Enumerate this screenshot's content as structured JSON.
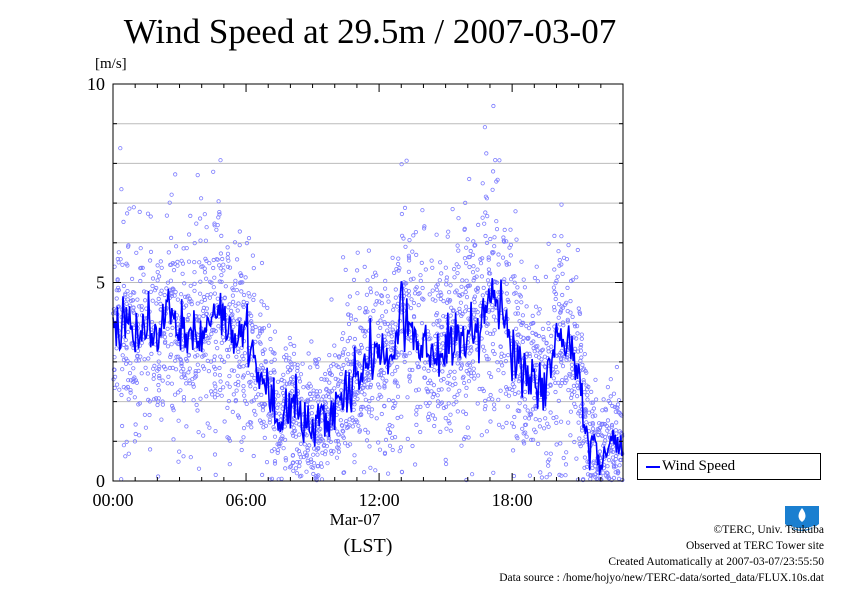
{
  "chart_data": {
    "type": "scatter",
    "title": "Wind Speed at 29.5m / 2007-03-07",
    "ylabel": "[m/s]",
    "xlabel": "(LST)",
    "xdate_label": "Mar-07",
    "ylim": [
      0,
      10
    ],
    "xlim_hours": [
      0,
      23
    ],
    "yticks": [
      0,
      5,
      10
    ],
    "ytick_labels": [
      "0",
      "5",
      "10"
    ],
    "xticks_hours": [
      0,
      6,
      12,
      18
    ],
    "xtick_labels": [
      "00:00",
      "06:00",
      "12:00",
      "18:00"
    ],
    "grid": true,
    "legend_position": "right-bottom",
    "series": [
      {
        "name": "Wind Speed",
        "style": "line",
        "color": "#0000ff",
        "x_hours": [
          0,
          0.5,
          1,
          1.5,
          2,
          2.5,
          3,
          3.5,
          4,
          4.5,
          5,
          5.5,
          6,
          6.5,
          7,
          7.5,
          8,
          8.5,
          9,
          9.5,
          10,
          10.5,
          11,
          11.5,
          12,
          12.5,
          13,
          13.5,
          14,
          14.5,
          15,
          15.5,
          16,
          16.5,
          17,
          17.5,
          18,
          18.5,
          19,
          19.5,
          20,
          20.5,
          21,
          21.5,
          22,
          22.5,
          23
        ],
        "values": [
          3.6,
          3.9,
          3.7,
          4.1,
          3.6,
          4.5,
          3.6,
          3.7,
          3.7,
          4.0,
          4.0,
          3.5,
          3.6,
          2.8,
          2.5,
          1.4,
          2.0,
          1.6,
          1.4,
          1.5,
          1.7,
          2.3,
          2.7,
          3.0,
          3.2,
          2.7,
          4.4,
          3.7,
          3.4,
          3.0,
          3.6,
          3.6,
          3.9,
          3.8,
          4.4,
          4.5,
          3.4,
          2.9,
          2.6,
          2.5,
          3.6,
          3.6,
          2.6,
          1.0,
          0.7,
          1.1,
          1.0
        ]
      },
      {
        "name": "",
        "style": "raw-samples",
        "color": "#7b7bff"
      }
    ]
  },
  "legend": {
    "label": "Wind Speed"
  },
  "footer": {
    "line1": "©TERC, Univ. Tsukuba",
    "line2": "Observed at TERC Tower site",
    "line3": "Created Automatically at 2007-03-07/23:55:50",
    "line4": "Data source : /home/hojyo/new/TERC-data/sorted_data/FLUX.10s.dat"
  },
  "logo": {
    "name": "terc-logo-icon",
    "text": "TERC",
    "color": "#1a7fd0"
  }
}
